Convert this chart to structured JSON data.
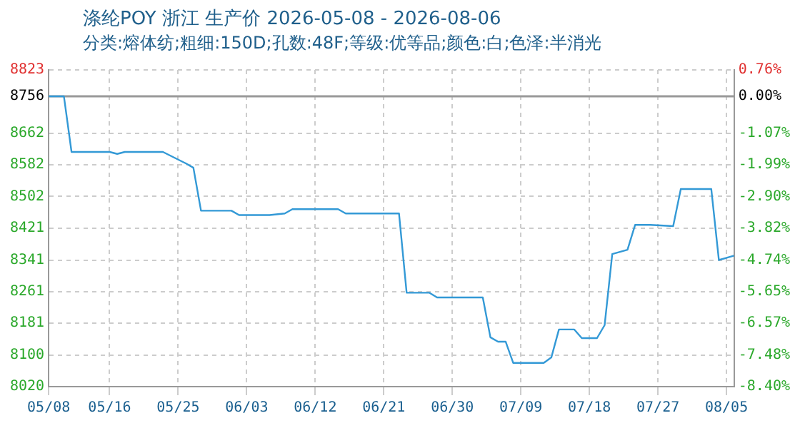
{
  "chart_data": {
    "type": "step",
    "title": "涤纶POY 浙江 生产价 2026-05-08 - 2026-08-06",
    "subtitle": "分类:熔体纺;粗细:150D;孔数:48F;等级:优等品;颜色:白;色泽:半消光",
    "x": [
      "2026-05-08",
      "2026-05-10",
      "2026-05-11",
      "2026-05-16",
      "2026-05-17",
      "2026-05-18",
      "2026-05-23",
      "2026-05-26",
      "2026-05-27",
      "2026-05-28",
      "2026-06-01",
      "2026-06-02",
      "2026-06-06",
      "2026-06-08",
      "2026-06-09",
      "2026-06-15",
      "2026-06-16",
      "2026-06-23",
      "2026-06-24",
      "2026-06-27",
      "2026-06-28",
      "2026-07-04",
      "2026-07-05",
      "2026-07-06",
      "2026-07-07",
      "2026-07-08",
      "2026-07-12",
      "2026-07-13",
      "2026-07-14",
      "2026-07-16",
      "2026-07-17",
      "2026-07-19",
      "2026-07-20",
      "2026-07-21",
      "2026-07-23",
      "2026-07-24",
      "2026-07-26",
      "2026-07-29",
      "2026-07-30",
      "2026-08-03",
      "2026-08-04",
      "2026-08-06"
    ],
    "series": [
      {
        "color": "#3399d6",
        "values": [
          8756,
          8756,
          8615,
          8615,
          8610,
          8615,
          8615,
          8586,
          8575,
          8466,
          8466,
          8455,
          8455,
          8459,
          8470,
          8470,
          8459,
          8459,
          8258,
          8258,
          8246,
          8246,
          8145,
          8134,
          8134,
          8080,
          8080,
          8094,
          8165,
          8165,
          8143,
          8143,
          8176,
          8356,
          8367,
          8430,
          8430,
          8427,
          8521,
          8521,
          8341,
          8352
        ]
      }
    ],
    "xlim": [
      "2026-05-08",
      "2026-08-06"
    ],
    "xticks": [
      {
        "value": "2026-05-08",
        "label": "05/08"
      },
      {
        "value": "2026-05-16",
        "label": "05/16"
      },
      {
        "value": "2026-05-25",
        "label": "05/25"
      },
      {
        "value": "2026-06-03",
        "label": "06/03"
      },
      {
        "value": "2026-06-12",
        "label": "06/12"
      },
      {
        "value": "2026-06-21",
        "label": "06/21"
      },
      {
        "value": "2026-06-30",
        "label": "06/30"
      },
      {
        "value": "2026-07-09",
        "label": "07/09"
      },
      {
        "value": "2026-07-18",
        "label": "07/18"
      },
      {
        "value": "2026-07-27",
        "label": "07/27"
      },
      {
        "value": "2026-08-05",
        "label": "08/05"
      }
    ],
    "ylim": [
      8020,
      8823
    ],
    "yticks": [
      8020,
      8100,
      8181,
      8261,
      8341,
      8421,
      8502,
      8582,
      8662,
      8756,
      8823
    ],
    "y2lim": [
      -8.4,
      0.76
    ],
    "y2ticks": [
      {
        "value": -8.4,
        "label": "-8.40%"
      },
      {
        "value": -7.48,
        "label": "-7.48%"
      },
      {
        "value": -6.57,
        "label": "-6.57%"
      },
      {
        "value": -5.65,
        "label": "-5.65%"
      },
      {
        "value": -4.74,
        "label": "-4.74%"
      },
      {
        "value": -3.82,
        "label": "-3.82%"
      },
      {
        "value": -2.9,
        "label": "-2.90%"
      },
      {
        "value": -1.99,
        "label": "-1.99%"
      },
      {
        "value": -1.07,
        "label": "-1.07%"
      },
      {
        "value": 0,
        "label": "0.00%"
      },
      {
        "value": 0.76,
        "label": "0.76%"
      }
    ],
    "ref_lines": [
      {
        "axis": "y",
        "value": 8756,
        "color": "#999999"
      }
    ],
    "grid": true,
    "legend": false,
    "marker": "none",
    "line_style": "solid"
  }
}
